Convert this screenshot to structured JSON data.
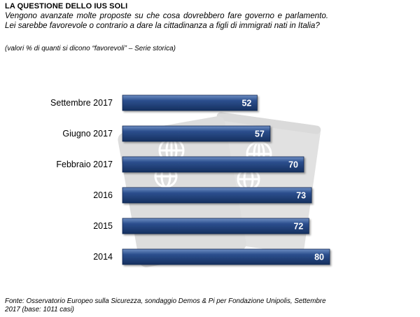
{
  "header": {
    "title": "LA QUESTIONE DELLO IUS SOLI",
    "question": "Vengono avanzate molte proposte su che cosa dovrebbero fare governo e parlamento. Lei sarebbe favorevole o contrario a dare la cittadinanza a figli di immigrati nati in Italia?",
    "note": "(valori % di quanti si dicono “favorevoli” – Serie storica)"
  },
  "chart_data": {
    "type": "bar",
    "orientation": "horizontal",
    "categories": [
      "Settembre 2017",
      "Giugno 2017",
      "Febbraio 2017",
      "2016",
      "2015",
      "2014"
    ],
    "values": [
      52,
      57,
      70,
      73,
      72,
      80
    ],
    "value_labels": [
      "52",
      "57",
      "70",
      "73",
      "72",
      "80"
    ],
    "xlim": [
      0,
      100
    ],
    "grid": false,
    "legend": "none",
    "bar_color": "#203f7a",
    "label_color": "#ffffff"
  },
  "footer": {
    "source": "Fonte: Osservatorio Europeo sulla Sicurezza, sondaggio Demos & Pi per Fondazione Unipolis, Settembre 2017 (base: 1011 casi)"
  }
}
